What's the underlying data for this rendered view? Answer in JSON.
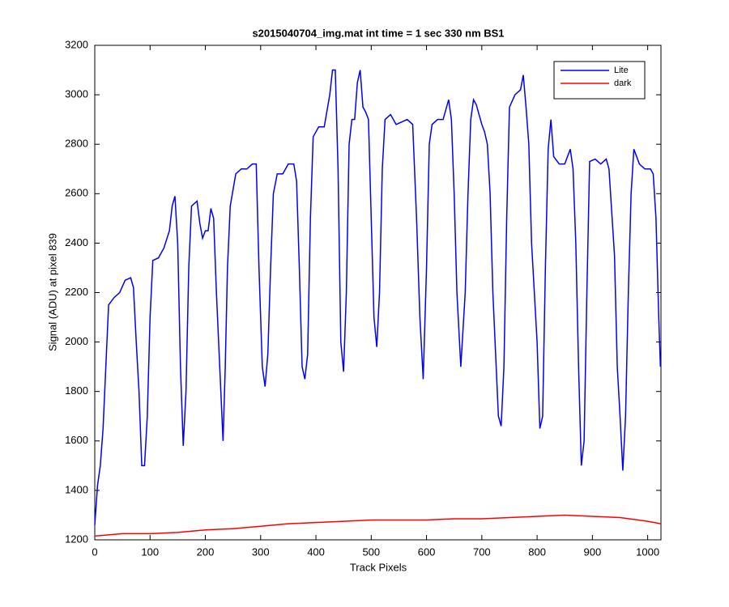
{
  "chart_data": {
    "type": "line",
    "title": "s2015040704_img.mat int time = 1 sec  330 nm BS1",
    "x_label": "Track Pixels",
    "y_label": "Signal (ADU) at pixel 839",
    "xlim": [
      0,
      1024
    ],
    "ylim": [
      1200,
      3200
    ],
    "xticks": [
      0,
      100,
      200,
      300,
      400,
      500,
      600,
      700,
      800,
      900,
      1000
    ],
    "yticks": [
      1200,
      1400,
      1600,
      1800,
      2000,
      2200,
      2400,
      2600,
      2800,
      3000,
      3200
    ],
    "grid": false,
    "legend": "northeast",
    "series": [
      {
        "name": "Lite",
        "color": "#0000ff",
        "x": [
          0,
          5,
          10,
          15,
          20,
          25,
          35,
          45,
          55,
          65,
          70,
          75,
          80,
          85,
          90,
          95,
          100,
          105,
          115,
          125,
          135,
          140,
          145,
          150,
          155,
          160,
          165,
          170,
          175,
          185,
          190,
          195,
          200,
          205,
          210,
          215,
          220,
          228,
          232,
          236,
          240,
          245,
          255,
          265,
          275,
          285,
          292,
          297,
          303,
          308,
          313,
          318,
          323,
          330,
          340,
          350,
          360,
          365,
          370,
          375,
          380,
          385,
          390,
          395,
          405,
          415,
          425,
          430,
          435,
          440,
          445,
          450,
          455,
          460,
          465,
          470,
          475,
          480,
          485,
          490,
          495,
          500,
          505,
          510,
          515,
          520,
          525,
          535,
          545,
          565,
          575,
          582,
          588,
          594,
          600,
          605,
          610,
          620,
          630,
          640,
          645,
          650,
          655,
          662,
          670,
          675,
          680,
          685,
          690,
          695,
          700,
          705,
          710,
          715,
          720,
          730,
          735,
          740,
          745,
          750,
          760,
          770,
          775,
          780,
          785,
          790,
          800,
          805,
          810,
          815,
          820,
          825,
          830,
          840,
          850,
          860,
          865,
          870,
          875,
          880,
          885,
          890,
          895,
          905,
          915,
          925,
          930,
          940,
          945,
          950,
          955,
          960,
          965,
          970,
          975,
          985,
          995,
          1005,
          1010,
          1015,
          1020,
          1023
        ],
        "values": [
          1260,
          1420,
          1500,
          1650,
          1900,
          2150,
          2180,
          2200,
          2250,
          2260,
          2220,
          2000,
          1800,
          1500,
          1500,
          1700,
          2100,
          2330,
          2340,
          2380,
          2450,
          2550,
          2590,
          2400,
          1900,
          1580,
          1800,
          2300,
          2550,
          2570,
          2480,
          2420,
          2450,
          2450,
          2540,
          2500,
          2200,
          1800,
          1600,
          1900,
          2300,
          2550,
          2680,
          2700,
          2700,
          2720,
          2720,
          2300,
          1900,
          1820,
          1950,
          2300,
          2600,
          2680,
          2680,
          2720,
          2720,
          2650,
          2300,
          1900,
          1850,
          1950,
          2500,
          2830,
          2870,
          2870,
          3000,
          3100,
          3100,
          2700,
          2000,
          1880,
          2200,
          2800,
          2900,
          2900,
          3050,
          3100,
          2950,
          2930,
          2900,
          2500,
          2100,
          1980,
          2200,
          2700,
          2900,
          2920,
          2880,
          2900,
          2880,
          2500,
          2100,
          1850,
          2300,
          2800,
          2880,
          2900,
          2900,
          2980,
          2900,
          2600,
          2200,
          1900,
          2200,
          2600,
          2900,
          2980,
          2960,
          2920,
          2880,
          2850,
          2800,
          2600,
          2200,
          1700,
          1660,
          1900,
          2500,
          2950,
          3000,
          3020,
          3080,
          2950,
          2800,
          2400,
          2000,
          1650,
          1700,
          2300,
          2780,
          2900,
          2750,
          2720,
          2720,
          2780,
          2700,
          2400,
          1900,
          1500,
          1600,
          2200,
          2730,
          2740,
          2720,
          2740,
          2700,
          2350,
          1900,
          1700,
          1480,
          1700,
          2200,
          2600,
          2780,
          2720,
          2700,
          2700,
          2680,
          2500,
          2100,
          1900
        ]
      },
      {
        "name": "dark",
        "color": "#ff0000",
        "x": [
          0,
          50,
          100,
          150,
          200,
          250,
          300,
          350,
          400,
          450,
          500,
          550,
          600,
          650,
          700,
          750,
          800,
          850,
          900,
          950,
          1000,
          1024
        ],
        "values": [
          1215,
          1225,
          1225,
          1230,
          1240,
          1245,
          1255,
          1265,
          1270,
          1275,
          1280,
          1280,
          1280,
          1285,
          1285,
          1290,
          1295,
          1300,
          1295,
          1290,
          1275,
          1265
        ]
      }
    ]
  }
}
